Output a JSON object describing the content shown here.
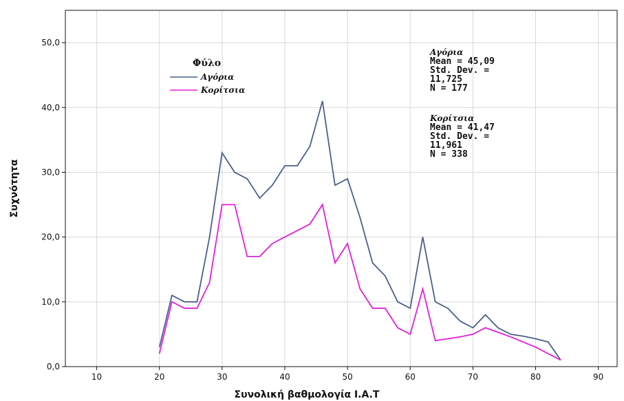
{
  "chart_data": {
    "type": "line",
    "xlabel": "Συνολική βαθμολογία I.A.T",
    "ylabel": "Συχνότητα",
    "xlim": [
      5,
      93
    ],
    "ylim": [
      0,
      55
    ],
    "x_ticks": [
      10,
      20,
      30,
      40,
      50,
      60,
      70,
      80,
      90
    ],
    "x_tick_labels": [
      "10",
      "20",
      "30",
      "40",
      "50",
      "60",
      "70",
      "80",
      "90"
    ],
    "y_ticks": [
      0,
      10,
      20,
      30,
      40,
      50
    ],
    "y_tick_labels": [
      "0,0",
      "10,0",
      "20,0",
      "30,0",
      "40,0",
      "50,0"
    ],
    "grid": true,
    "legend": {
      "title": "Φύλο",
      "position": "top-left",
      "entries": [
        "Αγόρια",
        "Κορίτσια"
      ]
    },
    "series": [
      {
        "name": "Αγόρια",
        "color": "#4a5f8c",
        "x": [
          20,
          22,
          24,
          26,
          28,
          30,
          32,
          34,
          36,
          38,
          40,
          42,
          44,
          46,
          48,
          50,
          52,
          54,
          56,
          58,
          60,
          62,
          64,
          66,
          68,
          70,
          72,
          74,
          76,
          78,
          80,
          82,
          84
        ],
        "y": [
          3,
          11,
          10,
          10,
          20,
          33,
          30,
          29,
          26,
          28,
          31,
          31,
          34,
          41,
          28,
          29,
          23,
          16,
          14,
          10,
          9,
          20,
          10,
          9,
          7,
          6,
          8,
          6,
          5,
          4.7,
          4.3,
          3.8,
          1
        ]
      },
      {
        "name": "Κορίτσια",
        "color": "#e020e0",
        "x": [
          20,
          22,
          24,
          26,
          28,
          30,
          32,
          34,
          36,
          38,
          40,
          42,
          44,
          46,
          48,
          50,
          52,
          54,
          56,
          58,
          60,
          62,
          64,
          66,
          68,
          70,
          72,
          74,
          76,
          78,
          80,
          82,
          84
        ],
        "y": [
          2,
          10,
          9,
          9,
          13,
          25,
          25,
          17,
          17,
          19,
          20,
          21,
          22,
          25,
          16,
          19,
          12,
          9,
          9,
          6,
          5,
          12,
          4,
          4.3,
          4.6,
          5,
          6,
          5.3,
          4.6,
          3.8,
          3,
          2,
          1
        ]
      }
    ],
    "annotations": [
      {
        "group": "Αγόρια",
        "lines": [
          "Αγόρια",
          "Mean = 45,09",
          "Std. Dev. =",
          "11,725",
          "N = 177"
        ]
      },
      {
        "group": "Κορίτσια",
        "lines": [
          "Κορίτσια",
          "Mean = 41,47",
          "Std. Dev. =",
          "11,961",
          "N = 338"
        ]
      }
    ]
  }
}
